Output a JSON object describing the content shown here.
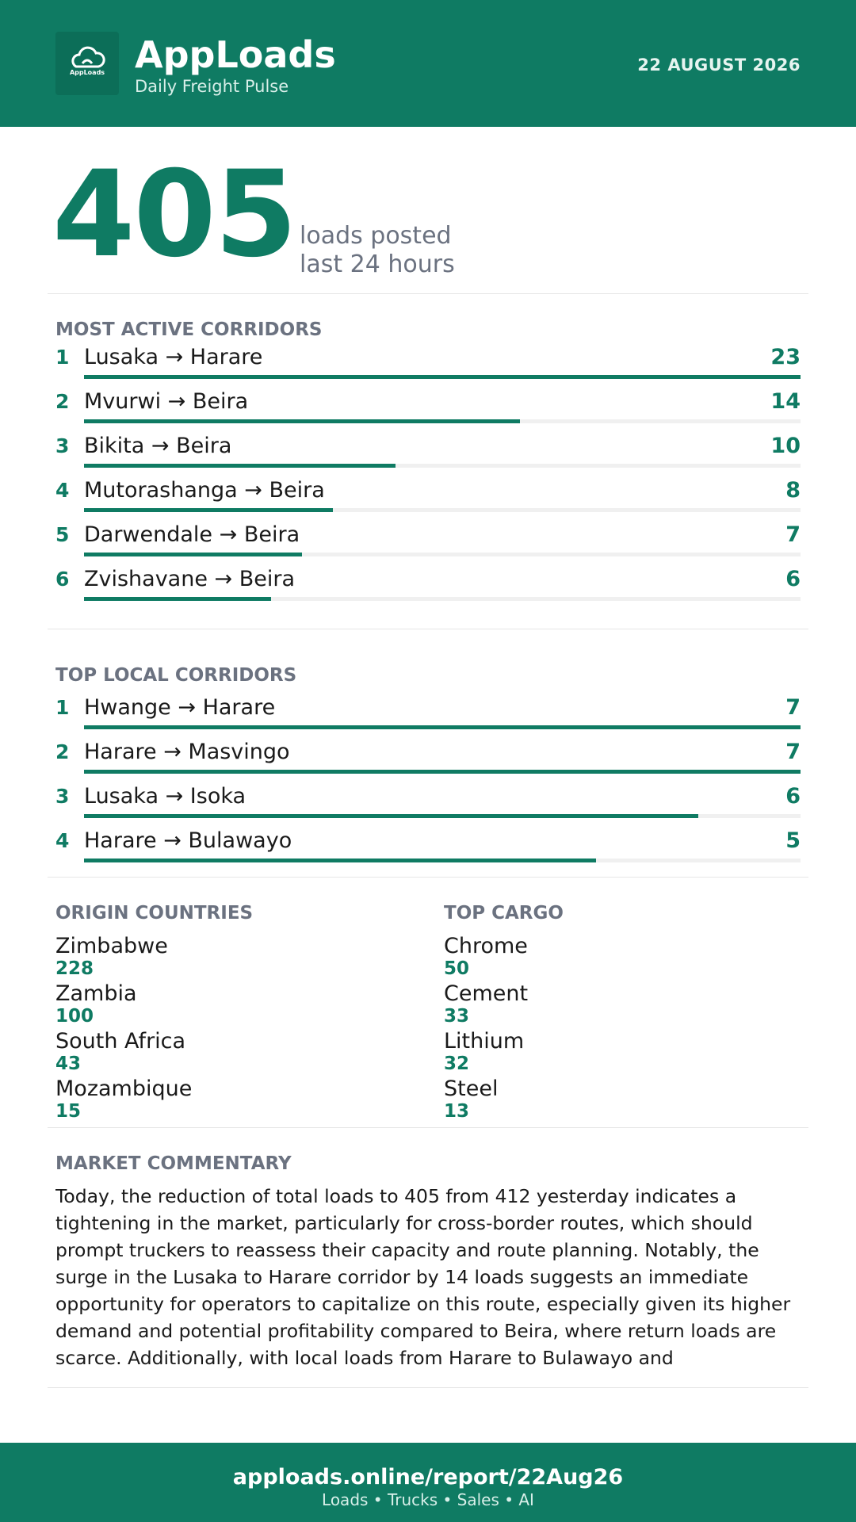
{
  "header": {
    "logo_label": "AppLoads",
    "title": "AppLoads",
    "subtitle": "Daily Freight Pulse",
    "date": "22 AUGUST 2026"
  },
  "hero": {
    "value": 405,
    "label_lines": [
      "loads posted",
      "last 24 hours"
    ]
  },
  "active_corridors": {
    "title": "MOST ACTIVE CORRIDORS",
    "items": [
      {
        "rank": 1,
        "route": "Lusaka → Harare",
        "value": 23
      },
      {
        "rank": 2,
        "route": "Mvurwi → Beira",
        "value": 14
      },
      {
        "rank": 3,
        "route": "Bikita → Beira",
        "value": 10
      },
      {
        "rank": 4,
        "route": "Mutorashanga → Beira",
        "value": 8
      },
      {
        "rank": 5,
        "route": "Darwendale → Beira",
        "value": 7
      },
      {
        "rank": 6,
        "route": "Zvishavane → Beira",
        "value": 6
      }
    ]
  },
  "local_corridors": {
    "title": "TOP LOCAL CORRIDORS",
    "items": [
      {
        "rank": 1,
        "route": "Hwange → Harare",
        "value": 7
      },
      {
        "rank": 2,
        "route": "Harare → Masvingo",
        "value": 7
      },
      {
        "rank": 3,
        "route": "Lusaka → Isoka",
        "value": 6
      },
      {
        "rank": 4,
        "route": "Harare → Bulawayo",
        "value": 5
      }
    ]
  },
  "origin_countries": {
    "title": "ORIGIN COUNTRIES",
    "items": [
      {
        "name": "Zimbabwe",
        "value": 228
      },
      {
        "name": "Zambia",
        "value": 100
      },
      {
        "name": "South Africa",
        "value": 43
      },
      {
        "name": "Mozambique",
        "value": 15
      }
    ]
  },
  "top_cargo": {
    "title": "TOP CARGO",
    "items": [
      {
        "name": "Chrome",
        "value": 50
      },
      {
        "name": "Cement",
        "value": 33
      },
      {
        "name": "Lithium",
        "value": 32
      },
      {
        "name": "Steel",
        "value": 13
      }
    ]
  },
  "commentary": {
    "title": "MARKET COMMENTARY",
    "text": "Today, the reduction of total loads to 405 from 412 yesterday indicates a tightening in the market, particularly for cross-border routes, which should prompt truckers to reassess their capacity and route planning. Notably, the surge in the Lusaka to Harare corridor by 14 loads suggests an immediate opportunity for operators to capitalize on this route, especially given its higher demand and potential profitability compared to Beira, where return loads are scarce. Additionally, with local loads from Harare to Bulawayo and"
  },
  "footer": {
    "url": "apploads.online/report/22Aug26",
    "tagline": "Loads • Trucks • Sales • AI"
  }
}
